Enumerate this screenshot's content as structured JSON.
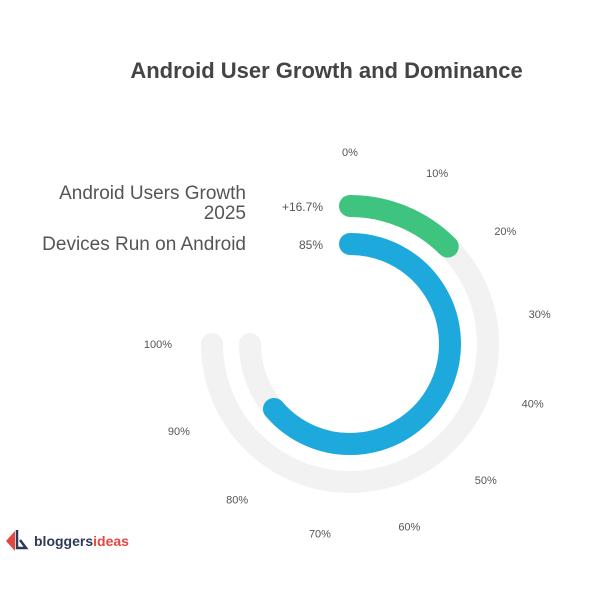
{
  "chart_data": {
    "type": "radial-bar",
    "title": "Android User Growth and Dominance",
    "scale": {
      "min": 0,
      "max": 100,
      "sweep_degrees": 270,
      "start": "top",
      "direction": "clockwise"
    },
    "ticks": [
      "0%",
      "10%",
      "20%",
      "30%",
      "40%",
      "50%",
      "60%",
      "70%",
      "80%",
      "90%",
      "100%"
    ],
    "series": [
      {
        "name": "Android Users Growth 2025",
        "name_lines": [
          "Android Users Growth",
          "2025"
        ],
        "value": 16.7,
        "label": "+16.7%",
        "color": "#3ec47e"
      },
      {
        "name": "Devices Run on Android",
        "name_lines": [
          "Devices Run on Android"
        ],
        "value": 85,
        "label": "85%",
        "color": "#1ea9dc"
      }
    ],
    "track_color": "#f2f2f2"
  },
  "logo": {
    "part1": "bloggers",
    "part2": "ideas"
  }
}
